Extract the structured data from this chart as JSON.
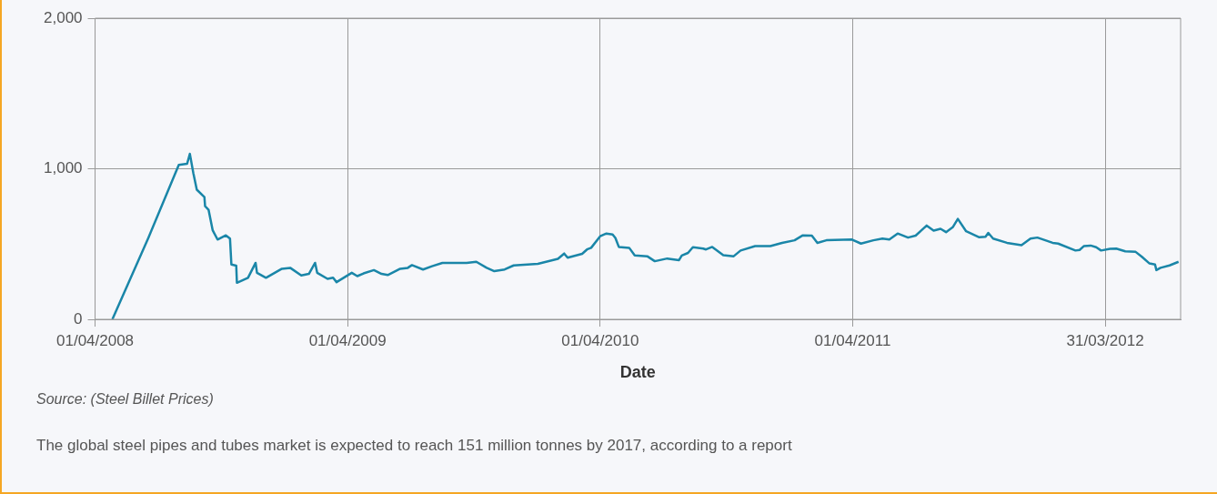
{
  "chart_data": {
    "type": "line",
    "xlabel": "Date",
    "annotations": [
      "Source: (Steel Billet Prices)",
      "The global steel pipes and tubes market is expected to reach 151 million tonnes by 2017, according to a report"
    ],
    "xlim": [
      "2008-04-01",
      "2012-07-18"
    ],
    "xticks": [
      {
        "value": "2008-04-01",
        "label": "01/04/2008"
      },
      {
        "value": "2009-04-01",
        "label": "01/04/2009"
      },
      {
        "value": "2010-04-01",
        "label": "01/04/2010"
      },
      {
        "value": "2011-04-01",
        "label": "01/04/2011"
      },
      {
        "value": "2012-03-31",
        "label": "31/03/2012"
      }
    ],
    "ylim": [
      0,
      2000
    ],
    "yticks": [
      0,
      {
        "value": 1000,
        "label": "1,000"
      },
      {
        "value": 2000,
        "label": "2,000"
      }
    ],
    "grid": true,
    "legend": false,
    "x": [
      "2008-04-26",
      "2008-06-17",
      "2008-07-31",
      "2008-08-12",
      "2008-08-16",
      "2008-08-21",
      "2008-08-26",
      "2008-09-06",
      "2008-09-07",
      "2008-09-12",
      "2008-09-18",
      "2008-09-25",
      "2008-10-07",
      "2008-10-13",
      "2008-10-15",
      "2008-10-22",
      "2008-10-23",
      "2008-11-08",
      "2008-11-19",
      "2008-11-21",
      "2008-12-04",
      "2008-12-27",
      "2009-01-08",
      "2009-01-24",
      "2009-02-04",
      "2009-02-13",
      "2009-02-16",
      "2009-03-03",
      "2009-03-11",
      "2009-03-16",
      "2009-04-07",
      "2009-04-15",
      "2009-04-24",
      "2009-05-09",
      "2009-05-20",
      "2009-05-29",
      "2009-06-16",
      "2009-06-27",
      "2009-07-03",
      "2009-07-19",
      "2009-08-01",
      "2009-08-16",
      "2009-09-20",
      "2009-10-04",
      "2009-10-19",
      "2009-10-30",
      "2009-11-14",
      "2009-11-27",
      "2009-12-17",
      "2010-01-01",
      "2010-01-30",
      "2010-02-08",
      "2010-02-13",
      "2010-03-06",
      "2010-03-13",
      "2010-03-19",
      "2010-04-01",
      "2010-04-10",
      "2010-04-19",
      "2010-04-23",
      "2010-04-28",
      "2010-05-13",
      "2010-05-21",
      "2010-06-08",
      "2010-06-19",
      "2010-07-07",
      "2010-07-24",
      "2010-07-28",
      "2010-08-06",
      "2010-08-13",
      "2010-08-28",
      "2010-09-01",
      "2010-09-10",
      "2010-09-26",
      "2010-10-11",
      "2010-10-21",
      "2010-11-11",
      "2010-12-03",
      "2010-12-20",
      "2011-01-07",
      "2011-01-19",
      "2011-02-01",
      "2011-02-09",
      "2011-02-22",
      "2011-03-31",
      "2011-04-13",
      "2011-05-01",
      "2011-05-14",
      "2011-05-24",
      "2011-06-05",
      "2011-06-20",
      "2011-07-01",
      "2011-07-17",
      "2011-07-27",
      "2011-08-06",
      "2011-08-14",
      "2011-08-24",
      "2011-08-31",
      "2011-09-12",
      "2011-10-01",
      "2011-10-10",
      "2011-10-14",
      "2011-10-21",
      "2011-11-10",
      "2011-12-01",
      "2011-12-14",
      "2011-12-24",
      "2012-01-15",
      "2012-01-23",
      "2012-02-17",
      "2012-02-23",
      "2012-02-29",
      "2012-03-10",
      "2012-03-18",
      "2012-03-25",
      "2012-04-07",
      "2012-04-16",
      "2012-04-29",
      "2012-05-14",
      "2012-05-23",
      "2012-06-03",
      "2012-06-11",
      "2012-06-13",
      "2012-06-19",
      "2012-07-02",
      "2012-07-15"
    ],
    "series": [
      {
        "color": "#1a86a8",
        "values": [
          0,
          541,
          1026,
          1033,
          1099,
          971,
          861,
          812,
          751,
          728,
          591,
          530,
          558,
          536,
          364,
          357,
          243,
          276,
          375,
          309,
          276,
          336,
          342,
          291,
          302,
          375,
          309,
          269,
          276,
          247,
          309,
          287,
          305,
          327,
          302,
          294,
          336,
          342,
          360,
          331,
          353,
          375,
          375,
          382,
          342,
          320,
          331,
          358,
          364,
          369,
          402,
          437,
          409,
          435,
          464,
          475,
          552,
          570,
          563,
          541,
          481,
          475,
          424,
          419,
          386,
          404,
          393,
          424,
          441,
          479,
          470,
          464,
          481,
          426,
          419,
          457,
          486,
          486,
          508,
          525,
          558,
          556,
          508,
          525,
          530,
          503,
          525,
          536,
          530,
          570,
          543,
          556,
          623,
          589,
          601,
          579,
          614,
          667,
          585,
          545,
          548,
          574,
          536,
          508,
          492,
          536,
          543,
          508,
          503,
          457,
          461,
          486,
          490,
          479,
          457,
          468,
          470,
          452,
          448,
          415,
          371,
          364,
          327,
          342,
          358,
          382
        ]
      }
    ]
  }
}
